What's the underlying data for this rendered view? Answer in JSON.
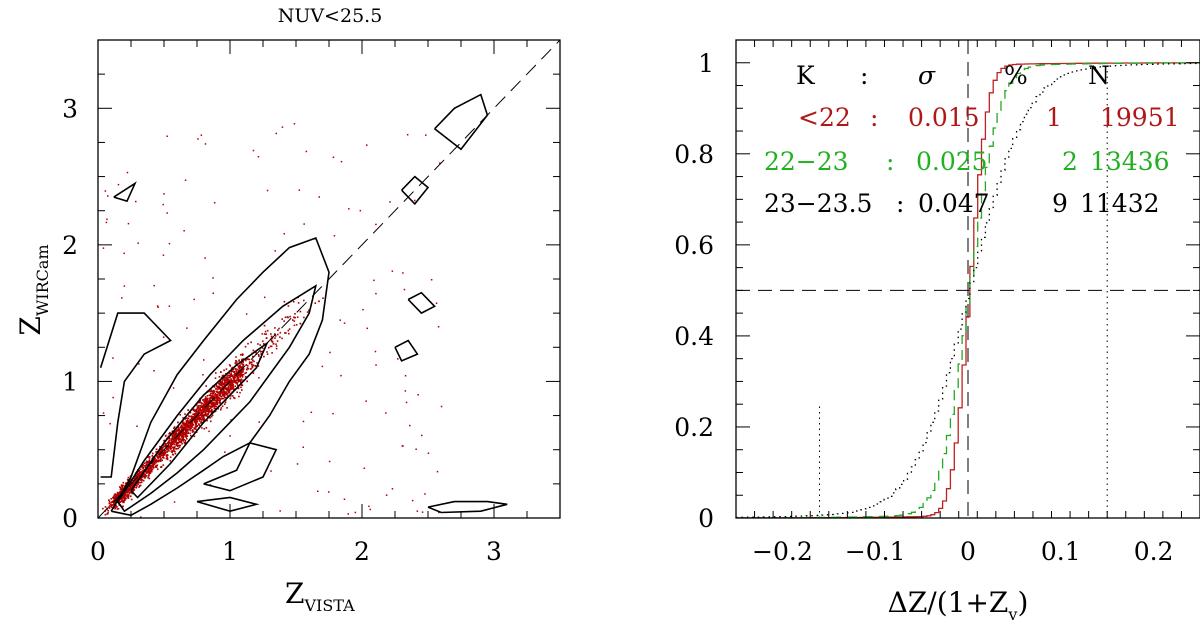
{
  "chart_data": [
    {
      "type": "scatter",
      "title": "NUV<25.5",
      "xlabel_main": "Z",
      "xlabel_sub": "VISTA",
      "ylabel_main": "Z",
      "ylabel_sub": "WIRCam",
      "xlim": [
        0,
        3.5
      ],
      "ylim": [
        0,
        3.5
      ],
      "xticks": [
        0,
        1,
        2,
        3
      ],
      "yticks": [
        0,
        1,
        2,
        3
      ],
      "xtick_labels": [
        "0",
        "1",
        "2",
        "3"
      ],
      "ytick_labels": [
        "0",
        "1",
        "2",
        "3"
      ],
      "points_color": "#b00000",
      "contour_color": "#000000",
      "one_to_one_line": [
        [
          0,
          0
        ],
        [
          3.5,
          3.5
        ]
      ],
      "contours": [
        {
          "level": "outer",
          "points": [
            [
              0.1,
              0.05
            ],
            [
              0.25,
              0.3
            ],
            [
              0.4,
              0.7
            ],
            [
              0.6,
              1.05
            ],
            [
              0.8,
              1.3
            ],
            [
              1.05,
              1.6
            ],
            [
              1.25,
              1.8
            ],
            [
              1.45,
              1.98
            ],
            [
              1.65,
              2.05
            ],
            [
              1.75,
              1.8
            ],
            [
              1.7,
              1.45
            ],
            [
              1.6,
              1.2
            ],
            [
              1.45,
              1.0
            ],
            [
              1.3,
              0.75
            ],
            [
              1.15,
              0.55
            ],
            [
              0.95,
              0.45
            ],
            [
              0.8,
              0.35
            ],
            [
              0.6,
              0.22
            ],
            [
              0.4,
              0.1
            ],
            [
              0.25,
              0.02
            ],
            [
              0.1,
              0.05
            ]
          ]
        },
        {
          "level": "middle",
          "points": [
            [
              0.15,
              0.12
            ],
            [
              0.35,
              0.42
            ],
            [
              0.6,
              0.75
            ],
            [
              0.85,
              1.05
            ],
            [
              1.1,
              1.3
            ],
            [
              1.4,
              1.55
            ],
            [
              1.65,
              1.7
            ],
            [
              1.6,
              1.5
            ],
            [
              1.45,
              1.25
            ],
            [
              1.3,
              1.05
            ],
            [
              1.15,
              0.85
            ],
            [
              1.0,
              0.7
            ],
            [
              0.8,
              0.5
            ],
            [
              0.6,
              0.33
            ],
            [
              0.4,
              0.18
            ],
            [
              0.2,
              0.05
            ],
            [
              0.15,
              0.12
            ]
          ]
        },
        {
          "level": "inner",
          "points": [
            [
              0.25,
              0.2
            ],
            [
              0.5,
              0.55
            ],
            [
              0.8,
              0.9
            ],
            [
              1.05,
              1.12
            ],
            [
              1.28,
              1.28
            ],
            [
              1.2,
              1.1
            ],
            [
              1.0,
              0.9
            ],
            [
              0.8,
              0.7
            ],
            [
              0.55,
              0.4
            ],
            [
              0.3,
              0.15
            ],
            [
              0.25,
              0.2
            ]
          ]
        },
        {
          "level": "outer-left",
          "points": [
            [
              0.02,
              1.1
            ],
            [
              0.15,
              1.5
            ],
            [
              0.35,
              1.5
            ],
            [
              0.55,
              1.3
            ],
            [
              0.35,
              1.2
            ],
            [
              0.2,
              1.0
            ],
            [
              0.15,
              0.7
            ],
            [
              0.1,
              0.3
            ],
            [
              0.02,
              0.3
            ]
          ]
        },
        {
          "level": "blob",
          "points": [
            [
              2.55,
              2.85
            ],
            [
              2.7,
              3.0
            ],
            [
              2.9,
              3.1
            ],
            [
              2.95,
              2.95
            ],
            [
              2.75,
              2.7
            ],
            [
              2.55,
              2.85
            ]
          ]
        },
        {
          "level": "blob",
          "points": [
            [
              0.12,
              2.35
            ],
            [
              0.28,
              2.45
            ],
            [
              0.22,
              2.32
            ],
            [
              0.12,
              2.35
            ]
          ]
        },
        {
          "level": "blob",
          "points": [
            [
              2.3,
              2.4
            ],
            [
              2.4,
              2.5
            ],
            [
              2.5,
              2.42
            ],
            [
              2.4,
              2.3
            ],
            [
              2.3,
              2.4
            ]
          ]
        },
        {
          "level": "blob",
          "points": [
            [
              2.35,
              1.6
            ],
            [
              2.45,
              1.65
            ],
            [
              2.55,
              1.55
            ],
            [
              2.45,
              1.5
            ],
            [
              2.35,
              1.6
            ]
          ]
        },
        {
          "level": "blob",
          "points": [
            [
              2.25,
              1.25
            ],
            [
              2.35,
              1.3
            ],
            [
              2.42,
              1.2
            ],
            [
              2.3,
              1.15
            ],
            [
              2.25,
              1.25
            ]
          ]
        },
        {
          "level": "blob",
          "points": [
            [
              0.8,
              0.25
            ],
            [
              1.05,
              0.35
            ],
            [
              1.15,
              0.55
            ],
            [
              1.35,
              0.5
            ],
            [
              1.25,
              0.3
            ],
            [
              1.0,
              0.2
            ],
            [
              0.8,
              0.25
            ]
          ]
        },
        {
          "level": "blob",
          "points": [
            [
              0.75,
              0.12
            ],
            [
              1.0,
              0.15
            ],
            [
              1.2,
              0.1
            ],
            [
              1.0,
              0.05
            ],
            [
              0.75,
              0.12
            ]
          ]
        },
        {
          "level": "blob",
          "points": [
            [
              2.5,
              0.08
            ],
            [
              2.7,
              0.12
            ],
            [
              2.95,
              0.12
            ],
            [
              3.1,
              0.1
            ],
            [
              2.9,
              0.05
            ],
            [
              2.6,
              0.04
            ],
            [
              2.5,
              0.08
            ]
          ]
        }
      ]
    },
    {
      "type": "line",
      "xlabel": "ΔZ/(1+Z",
      "xlabel_sub": "v",
      "xlabel_close": ")",
      "xlim": [
        -0.25,
        0.25
      ],
      "ylim": [
        0,
        1.05
      ],
      "xticks": [
        -0.2,
        -0.1,
        0,
        0.1,
        0.2
      ],
      "yticks": [
        0,
        0.2,
        0.4,
        0.6,
        0.8,
        1
      ],
      "xtick_labels": [
        "−0.2",
        "−0.1",
        "0",
        "0.1",
        "0.2"
      ],
      "ytick_labels": [
        "0",
        "0.2",
        "0.4",
        "0.6",
        "0.8",
        "1"
      ],
      "hline_y": 0.5,
      "vline_x": 0,
      "header": {
        "k": "K",
        "colon": ":",
        "sigma": "σ",
        "pct": "%",
        "n": "N"
      },
      "legend_rows": [
        {
          "k": "<22",
          "colon": ":",
          "sigma": "0.015",
          "pct": "1",
          "n": "19951",
          "color": "#b01818"
        },
        {
          "k": "22−23",
          "colon": ":",
          "sigma": "0.025",
          "pct": "2",
          "n": "13436",
          "color": "#22b022"
        },
        {
          "k": "23−23.5",
          "colon": ":",
          "sigma": "0.047",
          "pct": "9",
          "n": "11432",
          "color": "#000000"
        }
      ],
      "series": [
        {
          "name": "<22",
          "color": "#c02020",
          "dash": "none",
          "sigma": 0.015,
          "tail": 0.01
        },
        {
          "name": "22-23",
          "color": "#22aa22",
          "dash": "10,6",
          "sigma": 0.025,
          "tail": 0.02
        },
        {
          "name": "23-23.5",
          "color": "#000000",
          "dash": "1.5,4",
          "sigma": 0.047,
          "tail": 0.09
        }
      ],
      "marker_vlines": [
        {
          "x": -0.16,
          "y_top": 0.25
        },
        {
          "x": 0.15,
          "y_top": 1.0
        }
      ]
    }
  ]
}
